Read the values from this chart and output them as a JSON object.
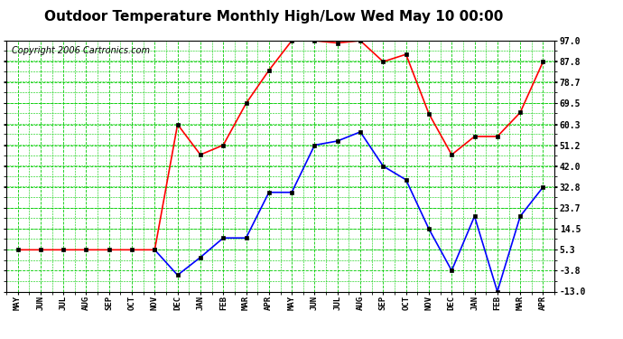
{
  "title": "Outdoor Temperature Monthly High/Low Wed May 10 00:00",
  "copyright": "Copyright 2006 Cartronics.com",
  "x_labels": [
    "MAY",
    "JUN",
    "JUL",
    "AUG",
    "SEP",
    "OCT",
    "NOV",
    "DEC",
    "JAN",
    "FEB",
    "MAR",
    "APR",
    "MAY",
    "JUN",
    "JUL",
    "AUG",
    "SEP",
    "OCT",
    "NOV",
    "DEC",
    "JAN",
    "FEB",
    "MAR",
    "APR"
  ],
  "high_temps": [
    5.3,
    5.3,
    5.3,
    5.3,
    5.3,
    5.3,
    5.3,
    60.3,
    47.0,
    51.2,
    69.5,
    84.0,
    97.0,
    97.0,
    96.0,
    97.0,
    87.8,
    91.0,
    65.0,
    47.0,
    55.0,
    55.0,
    65.5,
    87.8
  ],
  "low_temps": [
    null,
    null,
    null,
    null,
    null,
    null,
    5.3,
    -5.8,
    2.0,
    10.5,
    10.5,
    30.5,
    30.5,
    51.2,
    53.0,
    57.0,
    42.0,
    36.0,
    14.5,
    -3.8,
    20.0,
    -13.0,
    20.0,
    32.8
  ],
  "yticks": [
    97.0,
    87.8,
    78.7,
    69.5,
    60.3,
    51.2,
    42.0,
    32.8,
    23.7,
    14.5,
    5.3,
    -3.8,
    -13.0
  ],
  "ymin": -13.0,
  "ymax": 97.0,
  "high_color": "#ff0000",
  "low_color": "#0000ff",
  "grid_color": "#00cc00",
  "bg_color": "white",
  "plot_bg_color": "white",
  "title_fontsize": 11,
  "copyright_fontsize": 7,
  "marker_size": 3,
  "line_width": 1.2
}
